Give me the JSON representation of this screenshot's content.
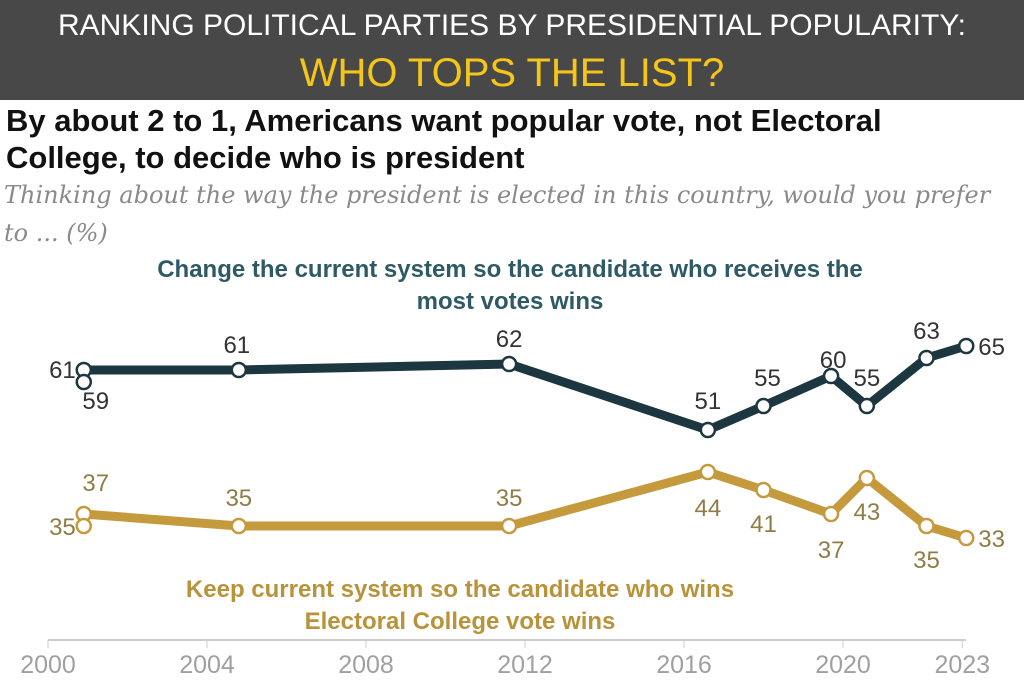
{
  "chart_data": {
    "type": "line",
    "title": "By about 2 to 1, Americans want popular vote, not Electoral College, to decide who is president",
    "subtitle": "Thinking about the way the president is elected in this country, would you prefer to ... (%)",
    "xlabel": "",
    "ylabel": "%",
    "xlim": [
      2000,
      2023.5
    ],
    "ylim": [
      30,
      70
    ],
    "x_ticks": [
      "2000",
      "2004",
      "2008",
      "2012",
      "2016",
      "2020",
      "2023"
    ],
    "series": [
      {
        "name": "Change the current system so the candidate who receives the most votes wins",
        "color": "#1d3740",
        "label_color": "#333",
        "x": [
          2000.9,
          2000.9,
          2004.8,
          2011.6,
          2016.6,
          2018.0,
          2019.7,
          2020.6,
          2022.1,
          2023.1
        ],
        "values": [
          61,
          59,
          61,
          62,
          51,
          55,
          60,
          55,
          63,
          65
        ]
      },
      {
        "name": "Keep current system so the candidate who wins Electoral College vote wins",
        "color": "#c49a3c",
        "label_color": "#8f7d45",
        "x": [
          2000.9,
          2000.9,
          2004.8,
          2011.6,
          2016.6,
          2018.0,
          2019.7,
          2020.6,
          2022.1,
          2023.1
        ],
        "values": [
          37,
          35,
          35,
          35,
          44,
          41,
          37,
          43,
          35,
          33
        ]
      }
    ]
  },
  "overlay": {
    "line1": "RANKING POLITICAL PARTIES BY PRESIDENTIAL POPULARITY:",
    "line2": "WHO TOPS THE LIST?"
  }
}
